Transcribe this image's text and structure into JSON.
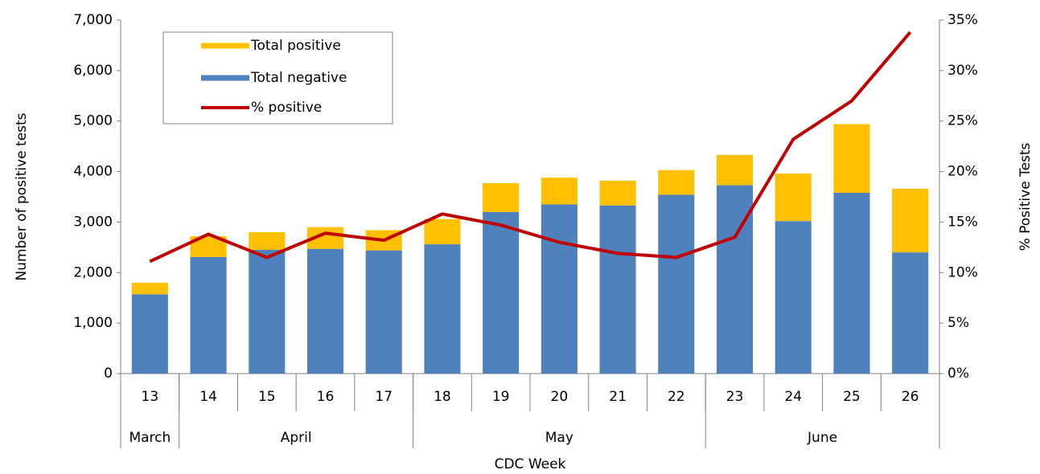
{
  "chart_data": {
    "type": "bar",
    "stacked": true,
    "categories": [
      "13",
      "14",
      "15",
      "16",
      "17",
      "18",
      "19",
      "20",
      "21",
      "22",
      "23",
      "24",
      "25",
      "26"
    ],
    "month_groups": [
      {
        "label": "March",
        "count": 1
      },
      {
        "label": "April",
        "count": 4
      },
      {
        "label": "May",
        "count": 5
      },
      {
        "label": "June",
        "count": 4
      }
    ],
    "series": [
      {
        "name": "Total positive",
        "type": "bar",
        "color": "#ffc000",
        "values": [
          230,
          410,
          350,
          430,
          400,
          500,
          570,
          530,
          490,
          490,
          600,
          940,
          1360,
          1260
        ]
      },
      {
        "name": "Total negative",
        "type": "bar",
        "color": "#4f81bd",
        "values": [
          1570,
          2310,
          2450,
          2470,
          2440,
          2560,
          3200,
          3350,
          3330,
          3540,
          3730,
          3020,
          3580,
          2400
        ]
      },
      {
        "name": "% positive",
        "type": "line",
        "axis": "y2",
        "color": "#c00000",
        "values": [
          11.1,
          13.8,
          11.5,
          13.9,
          13.2,
          15.8,
          14.7,
          13.0,
          11.9,
          11.5,
          13.5,
          23.2,
          27.0,
          33.8
        ]
      }
    ],
    "ylabel": "Number of positive tests",
    "y2label": "% Positive Tests",
    "xlabel": "CDC Week",
    "ylim": [
      0,
      7000
    ],
    "yticks": [
      0,
      {
        "value": 1000,
        "label": "1,000"
      },
      {
        "value": 2000,
        "label": "2,000"
      },
      {
        "value": 3000,
        "label": "3,000"
      },
      {
        "value": 4000,
        "label": "4,000"
      },
      {
        "value": 5000,
        "label": "5,000"
      },
      {
        "value": 6000,
        "label": "6,000"
      },
      {
        "value": 7000,
        "label": "7,000"
      }
    ],
    "y2lim": [
      0,
      35
    ],
    "y2ticks": [
      {
        "value": 0,
        "label": "0%"
      },
      {
        "value": 5,
        "label": "5%"
      },
      {
        "value": 10,
        "label": "10%"
      },
      {
        "value": 15,
        "label": "15%"
      },
      {
        "value": 20,
        "label": "20%"
      },
      {
        "value": 25,
        "label": "25%"
      },
      {
        "value": 30,
        "label": "30%"
      },
      {
        "value": 35,
        "label": "35%"
      }
    ],
    "legend": "upper left"
  }
}
